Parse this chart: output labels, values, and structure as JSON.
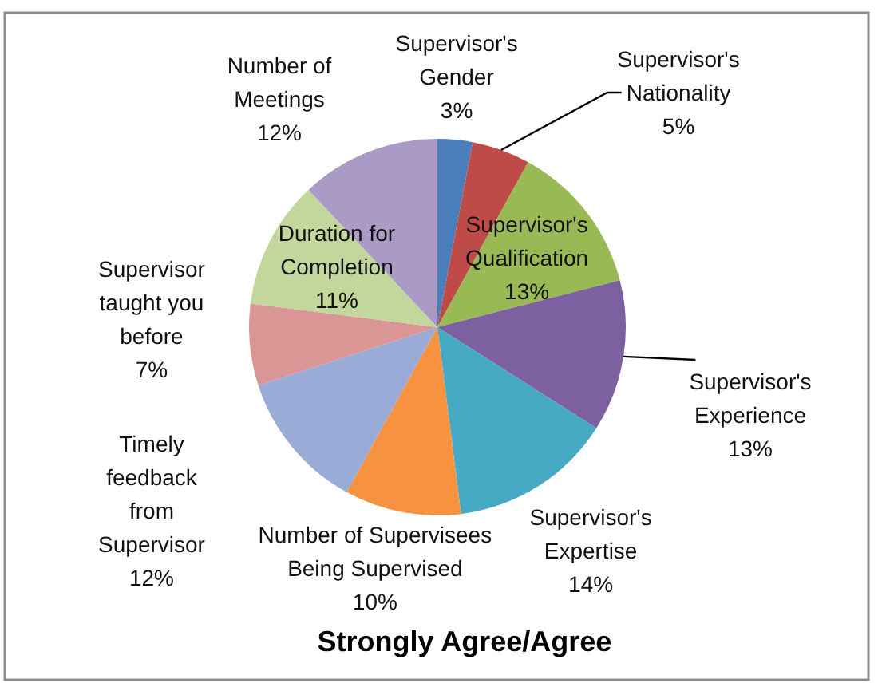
{
  "chart_data": {
    "type": "pie",
    "title": "Strongly Agree/Agree",
    "categories": [
      "Supervisor's Gender",
      "Supervisor's Nationality",
      "Supervisor's Qualification",
      "Supervisor's Experience",
      "Supervisor's Expertise",
      "Number of Supervisees Being Supervised",
      "Timely feedback from Supervisor",
      "Supervisor taught you before",
      "Duration for Completion",
      "Number of Meetings"
    ],
    "values": [
      3,
      5,
      13,
      13,
      14,
      10,
      12,
      7,
      11,
      12
    ],
    "value_labels": [
      "3%",
      "5%",
      "13%",
      "13%",
      "14%",
      "10%",
      "12%",
      "7%",
      "11%",
      "12%"
    ],
    "colors": [
      "#4a7ebb",
      "#be4b48",
      "#98b954",
      "#7d60a0",
      "#46aac5",
      "#f69240",
      "#9aabd8",
      "#d99694",
      "#c3d69b",
      "#a99bc5"
    ]
  }
}
